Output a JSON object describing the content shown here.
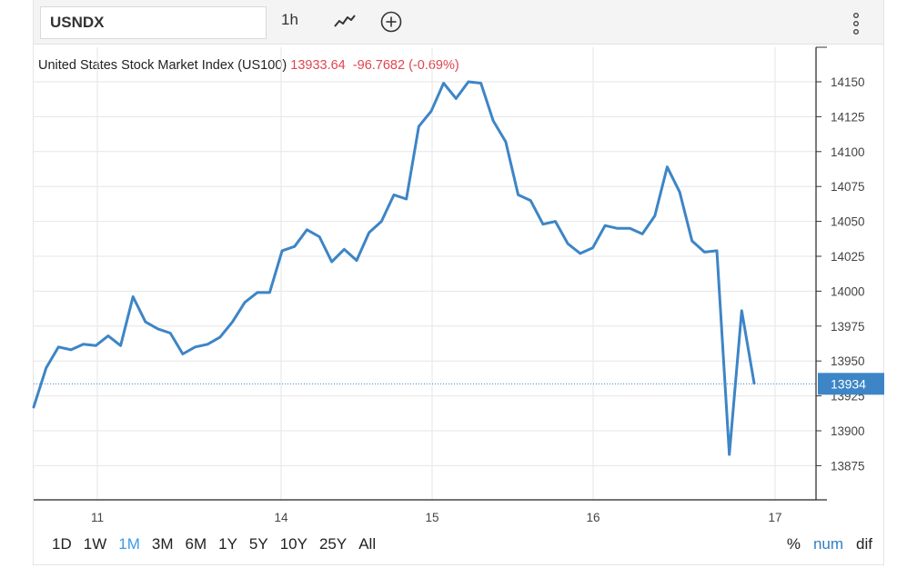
{
  "toolbar": {
    "symbol": "USNDX",
    "interval": "1h",
    "chart_type_icon": "line-chart-icon",
    "add_icon": "plus-circle-icon",
    "menu_icon": "kebab-menu-icon"
  },
  "legend": {
    "name": "United States Stock Market Index (US100)",
    "price": "13933.64",
    "change": "-96.7682",
    "change_pct": "(-0.69%)"
  },
  "ranges": [
    "1D",
    "1W",
    "1M",
    "3M",
    "6M",
    "1Y",
    "5Y",
    "10Y",
    "25Y",
    "All"
  ],
  "active_range": "1M",
  "modes": [
    "%",
    "num",
    "dif"
  ],
  "active_mode": "num",
  "colors": {
    "line": "#3d85c6",
    "last_price_tag": "#3d85c6",
    "negative": "#e0454f",
    "grid": "#e6e6e6"
  },
  "chart_data": {
    "type": "line",
    "series": [
      {
        "values": [
          13917,
          13945,
          13960,
          13958,
          13962,
          13961,
          13968,
          13961,
          13996,
          13978,
          13973,
          13970,
          13955,
          13960,
          13962,
          13967,
          13978,
          13992,
          13999,
          13999,
          14029,
          14032,
          14044,
          14039,
          14021,
          14030,
          14022,
          14042,
          14050,
          14069,
          14066,
          14118,
          14129,
          14149,
          14138,
          14150,
          14149,
          14122,
          14107,
          14069,
          14065,
          14048,
          14050,
          14034,
          14027,
          14031,
          14047,
          14045,
          14045,
          14041,
          14054,
          14089,
          14071,
          14036,
          14028,
          14029,
          13883,
          13986,
          13934
        ]
      }
    ],
    "x_tick_labels": [
      "11",
      "14",
      "15",
      "16",
      "17"
    ],
    "y_ticks": [
      13875,
      13900,
      13925,
      13950,
      13975,
      14000,
      14025,
      14050,
      14075,
      14100,
      14125,
      14150
    ],
    "ylim": [
      13850,
      14175
    ],
    "last_price_label": "13934",
    "last_price": 13933.64,
    "grid": true
  }
}
